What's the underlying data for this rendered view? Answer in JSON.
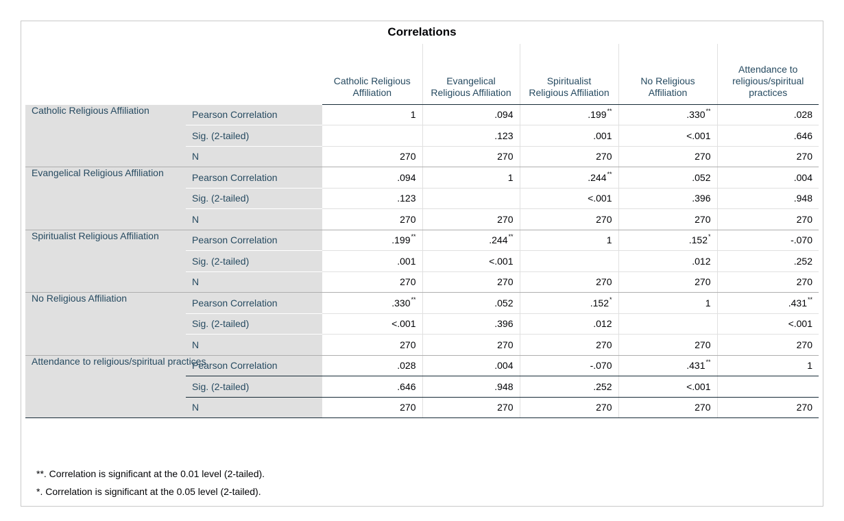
{
  "title": "Correlations",
  "columns": [
    "Catholic Religious Affiliation",
    "Evangelical Religious Affiliation",
    "Spiritualist Religious Affiliation",
    "No Religious Affiliation",
    "Attendance to religious/spiritual practices"
  ],
  "stat_labels": [
    "Pearson Correlation",
    "Sig. (2-tailed)",
    "N"
  ],
  "rows": [
    {
      "label": "Catholic Religious Affiliation",
      "pearson": [
        {
          "v": "1",
          "s": ""
        },
        {
          "v": ".094",
          "s": ""
        },
        {
          "v": ".199",
          "s": "**"
        },
        {
          "v": ".330",
          "s": "**"
        },
        {
          "v": ".028",
          "s": ""
        }
      ],
      "sig": [
        "",
        ".123",
        ".001",
        "<.001",
        ".646"
      ],
      "n": [
        "270",
        "270",
        "270",
        "270",
        "270"
      ]
    },
    {
      "label": "Evangelical Religious Affiliation",
      "pearson": [
        {
          "v": ".094",
          "s": ""
        },
        {
          "v": "1",
          "s": ""
        },
        {
          "v": ".244",
          "s": "**"
        },
        {
          "v": ".052",
          "s": ""
        },
        {
          "v": ".004",
          "s": ""
        }
      ],
      "sig": [
        ".123",
        "",
        "<.001",
        ".396",
        ".948"
      ],
      "n": [
        "270",
        "270",
        "270",
        "270",
        "270"
      ]
    },
    {
      "label": "Spiritualist Religious Affiliation",
      "pearson": [
        {
          "v": ".199",
          "s": "**"
        },
        {
          "v": ".244",
          "s": "**"
        },
        {
          "v": "1",
          "s": ""
        },
        {
          "v": ".152",
          "s": "*"
        },
        {
          "v": "-.070",
          "s": ""
        }
      ],
      "sig": [
        ".001",
        "<.001",
        "",
        ".012",
        ".252"
      ],
      "n": [
        "270",
        "270",
        "270",
        "270",
        "270"
      ]
    },
    {
      "label": "No Religious Affiliation",
      "pearson": [
        {
          "v": ".330",
          "s": "**"
        },
        {
          "v": ".052",
          "s": ""
        },
        {
          "v": ".152",
          "s": "*"
        },
        {
          "v": "1",
          "s": ""
        },
        {
          "v": ".431",
          "s": "**"
        }
      ],
      "sig": [
        "<.001",
        ".396",
        ".012",
        "",
        "<.001"
      ],
      "n": [
        "270",
        "270",
        "270",
        "270",
        "270"
      ]
    },
    {
      "label": "Attendance to religious/spiritual practices",
      "pearson": [
        {
          "v": ".028",
          "s": ""
        },
        {
          "v": ".004",
          "s": ""
        },
        {
          "v": "-.070",
          "s": ""
        },
        {
          "v": ".431",
          "s": "**"
        },
        {
          "v": "1",
          "s": ""
        }
      ],
      "sig": [
        ".646",
        ".948",
        ".252",
        "<.001",
        ""
      ],
      "n": [
        "270",
        "270",
        "270",
        "270",
        "270"
      ]
    }
  ],
  "footnotes": [
    "**. Correlation is significant at the 0.01 level (2-tailed).",
    "*. Correlation is significant at the 0.05 level (2-tailed)."
  ]
}
